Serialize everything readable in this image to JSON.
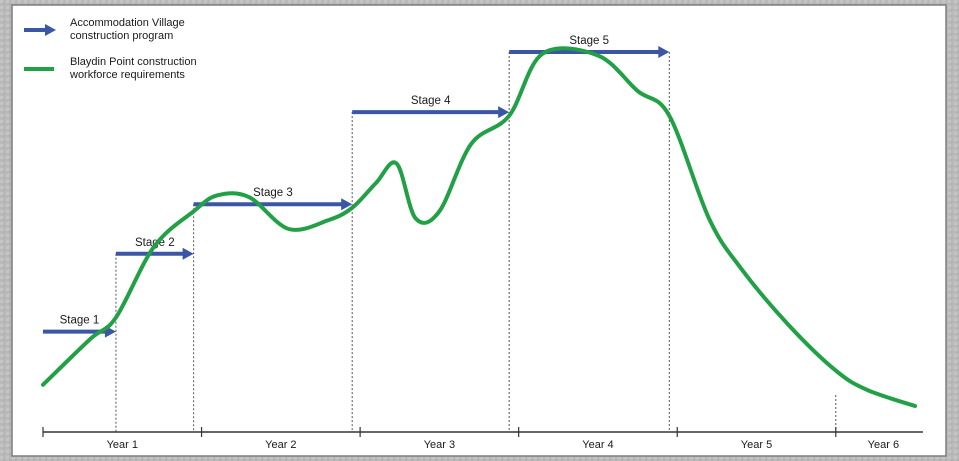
{
  "chart_data": {
    "type": "line",
    "title": "",
    "xlabel": "",
    "ylabel": "",
    "x_axis": {
      "ticks": [
        0,
        1,
        2,
        3,
        4,
        5,
        6,
        6.5
      ],
      "labels": [
        {
          "text": "Year 1",
          "at": 0.5
        },
        {
          "text": "Year 2",
          "at": 1.5
        },
        {
          "text": "Year 3",
          "at": 2.5
        },
        {
          "text": "Year 4",
          "at": 3.5
        },
        {
          "text": "Year 5",
          "at": 4.5
        },
        {
          "text": "Year 6",
          "at": 5.3
        }
      ],
      "xlim": [
        0,
        5.55
      ]
    },
    "y_axis": {
      "visible": false,
      "ylim": [
        0,
        100
      ]
    },
    "legend": {
      "position": "top-left",
      "items": [
        {
          "label_line1": "Accommodation Village",
          "label_line2": "construction program",
          "symbol": "blue-arrow"
        },
        {
          "label_line1": "Blaydin Point construction",
          "label_line2": "workforce requirements",
          "symbol": "green-line"
        }
      ]
    },
    "stages": [
      {
        "label": "Stage 1",
        "start": 0,
        "end": 0.46,
        "level": 21
      },
      {
        "label": "Stage 2",
        "start": 0.46,
        "end": 0.95,
        "level": 43
      },
      {
        "label": "Stage 3",
        "start": 0.95,
        "end": 1.95,
        "level": 57
      },
      {
        "label": "Stage 4",
        "start": 1.95,
        "end": 2.94,
        "level": 83
      },
      {
        "label": "Stage 5",
        "start": 2.94,
        "end": 3.95,
        "level": 100
      }
    ],
    "series": [
      {
        "color": "#22a046",
        "x": [
          0,
          0.3,
          0.46,
          0.7,
          0.95,
          1.1,
          1.3,
          1.55,
          1.8,
          1.95,
          2.1,
          2.23,
          2.35,
          2.5,
          2.7,
          2.94,
          3.15,
          3.5,
          3.75,
          3.95,
          4.2,
          4.4,
          4.7,
          5.0,
          5.2,
          5.5
        ],
        "y": [
          6,
          19,
          25,
          45,
          55,
          59.5,
          59,
          50,
          52.5,
          56,
          63,
          68.5,
          53,
          55,
          74,
          82,
          99.5,
          99,
          89,
          82,
          53,
          39,
          23,
          10,
          4.5,
          0
        ]
      }
    ],
    "colors": {
      "arrow": "#3a56a5",
      "line": "#22a046",
      "plot_bg": "#ffffff",
      "frame": "#7d7d7d"
    }
  }
}
